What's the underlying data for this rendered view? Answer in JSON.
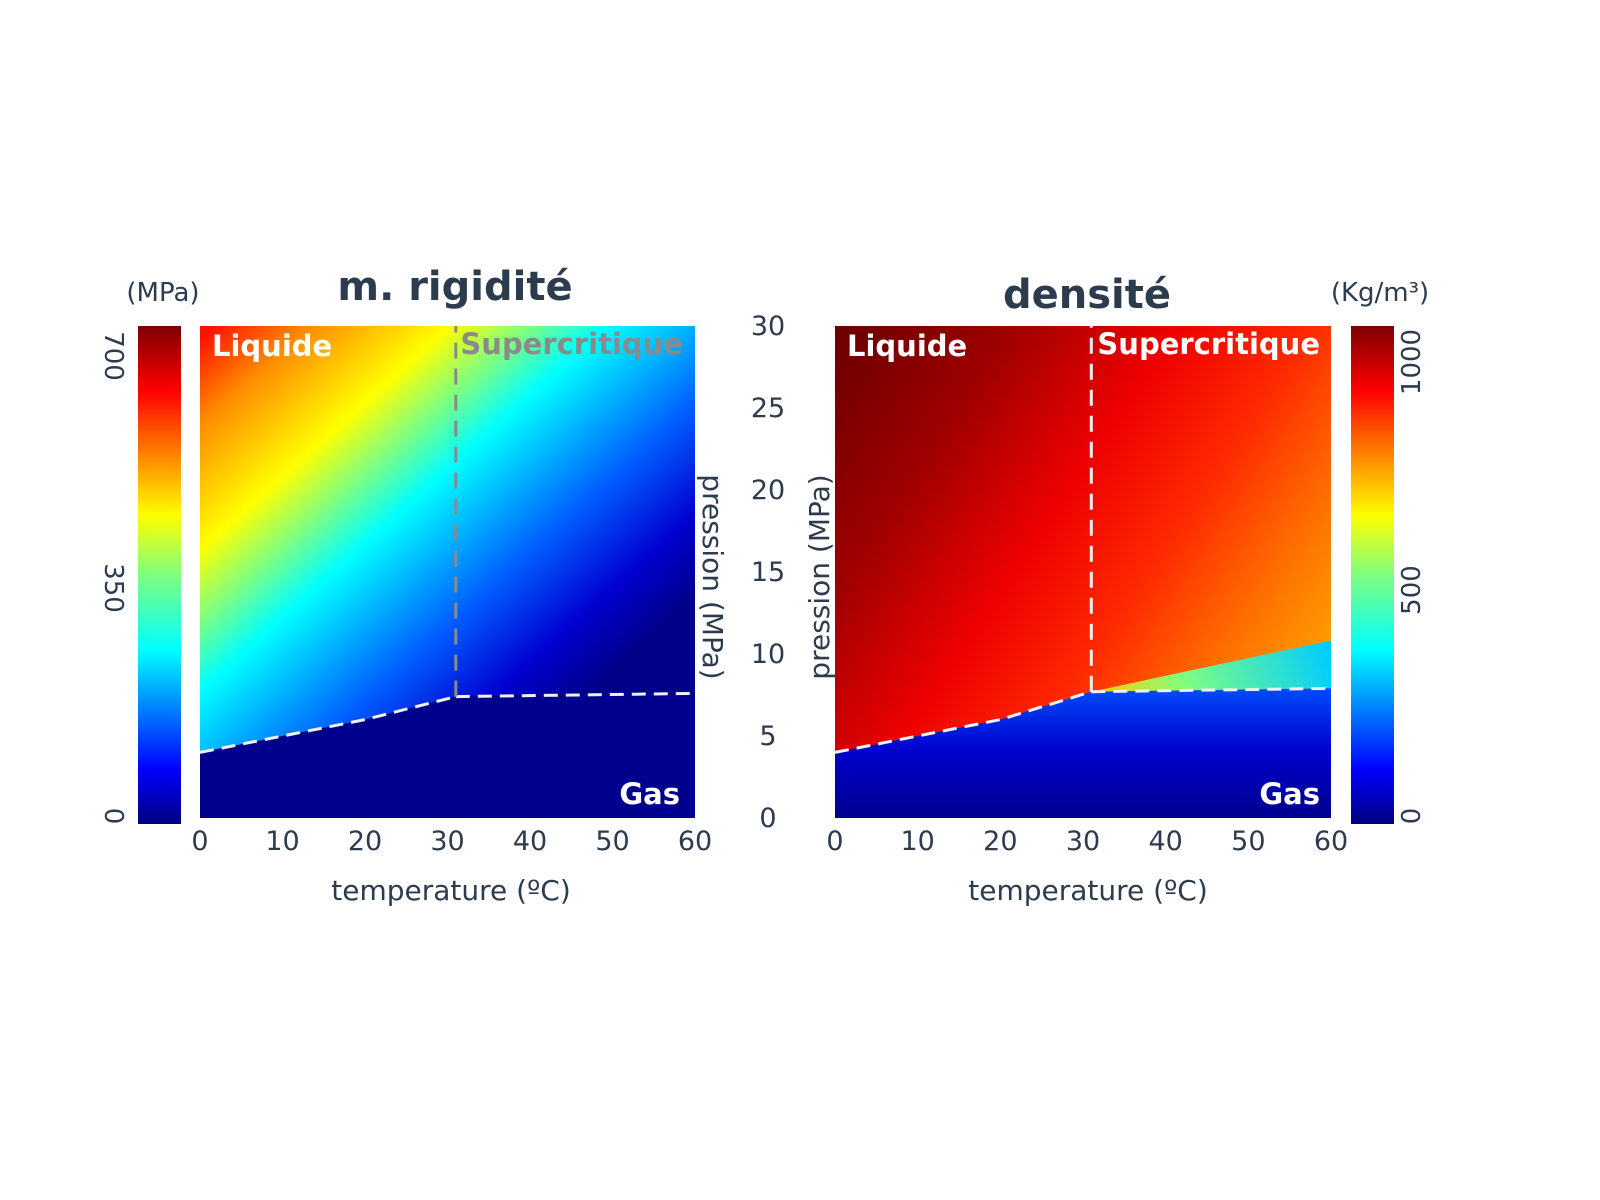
{
  "colors": {
    "text": "#2d3b4e",
    "region_text": "#ffffff",
    "supercritical_text_left": "#8a8a8a",
    "boundary_line_light": "#f0f0f0",
    "boundary_line_gray": "#8a8a8a",
    "colormap": "jet"
  },
  "chart_data": [
    {
      "type": "heatmap",
      "title": "m. rigidité",
      "xlabel": "temperature (ºC)",
      "ylabel": "pression (MPa)",
      "x_ticks": [
        "0",
        "10",
        "20",
        "30",
        "40",
        "50",
        "60"
      ],
      "y_ticks": [
        "0",
        "5",
        "10",
        "15",
        "20",
        "25",
        "30"
      ],
      "xlim": [
        0,
        60
      ],
      "ylim": [
        0,
        30
      ],
      "colorbar": {
        "unit": "(MPa)",
        "ticks": [
          "0",
          "350",
          "700"
        ],
        "range": [
          0,
          700
        ],
        "position": "left",
        "colormap": "jet"
      },
      "regions": [
        {
          "label": "Liquide",
          "anchor": "top-left",
          "color": "#ffffff"
        },
        {
          "label": "Supercritique",
          "anchor": "top-right",
          "color": "#8a8a8a"
        },
        {
          "label": "Gas",
          "anchor": "bottom-right",
          "color": "#ffffff"
        }
      ],
      "phase_boundary": {
        "vaporization_curve": [
          [
            0,
            4
          ],
          [
            10,
            5
          ],
          [
            20,
            6
          ],
          [
            31,
            7.4
          ]
        ],
        "supercritical_pressure_line": [
          [
            31,
            7.4
          ],
          [
            60,
            7.6
          ]
        ],
        "critical_temperature_line": [
          [
            31,
            7.4
          ],
          [
            31,
            30
          ]
        ]
      }
    },
    {
      "type": "heatmap",
      "title": "densité",
      "xlabel": "temperature (ºC)",
      "ylabel": "pression (MPa)",
      "x_ticks": [
        "0",
        "10",
        "20",
        "30",
        "40",
        "50",
        "60"
      ],
      "xlim": [
        0,
        60
      ],
      "ylim": [
        0,
        30
      ],
      "colorbar": {
        "unit": "(Kg/m³)",
        "ticks": [
          "0",
          "500",
          "1000"
        ],
        "range": [
          0,
          1000
        ],
        "position": "right",
        "colormap": "jet"
      },
      "regions": [
        {
          "label": "Liquide",
          "anchor": "top-left",
          "color": "#ffffff"
        },
        {
          "label": "Supercritique",
          "anchor": "top-right",
          "color": "#ffffff"
        },
        {
          "label": "Gas",
          "anchor": "bottom-right",
          "color": "#ffffff"
        }
      ],
      "phase_boundary": {
        "vaporization_curve": [
          [
            0,
            4
          ],
          [
            10,
            5
          ],
          [
            20,
            6
          ],
          [
            31,
            7.7
          ]
        ],
        "supercritical_pressure_line": [
          [
            31,
            7.7
          ],
          [
            60,
            7.9
          ]
        ],
        "critical_temperature_line": [
          [
            31,
            7.7
          ],
          [
            31,
            30
          ]
        ]
      }
    }
  ]
}
